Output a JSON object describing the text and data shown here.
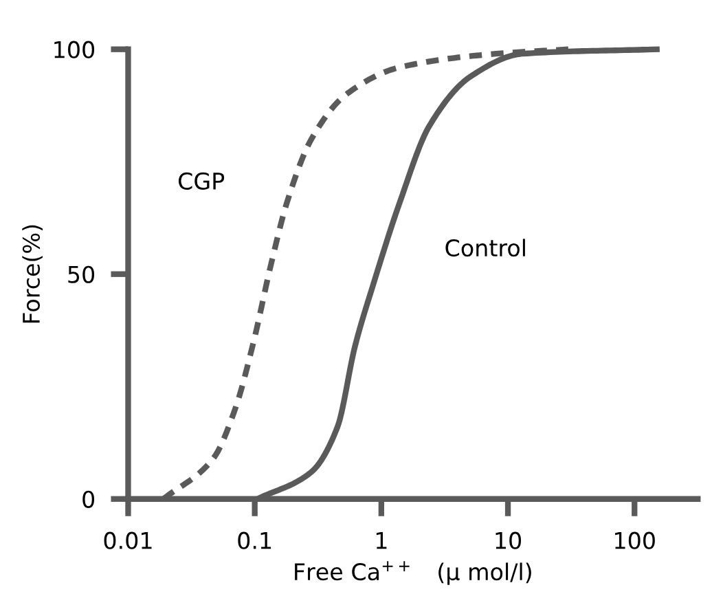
{
  "chart_data": {
    "type": "line",
    "xlabel": "Free Ca$^{++}$   (μ mol/l)",
    "ylabel": "Force(%)",
    "log": "x",
    "xlim": [
      0.01,
      316
    ],
    "xticks": [
      {
        "value": 0.01,
        "label": "0.01"
      },
      {
        "value": 0.1,
        "label": "0.1"
      },
      1,
      10,
      100
    ],
    "ylim": [
      0,
      100
    ],
    "yticks": [
      0,
      50,
      100
    ],
    "grid": false,
    "legend": false,
    "marker": "none",
    "series": [
      {
        "x": [
          0.019,
          0.047,
          0.07,
          0.098,
          0.134,
          0.18,
          0.28,
          0.53,
          1.4,
          8,
          30
        ],
        "values": [
          0,
          9,
          20,
          35,
          52,
          66,
          80,
          90,
          96,
          99,
          100
        ],
        "name": "CGP",
        "color": "#5a5a5a",
        "line_style": "dashed"
      },
      {
        "x": [
          0.105,
          0.28,
          0.45,
          0.62,
          0.87,
          1.4,
          2.4,
          5.1,
          13,
          150
        ],
        "values": [
          0,
          6,
          16,
          34,
          48,
          66,
          83,
          94,
          99,
          100
        ],
        "name": "Control",
        "color": "#5a5a5a",
        "line_style": "solid"
      }
    ]
  }
}
